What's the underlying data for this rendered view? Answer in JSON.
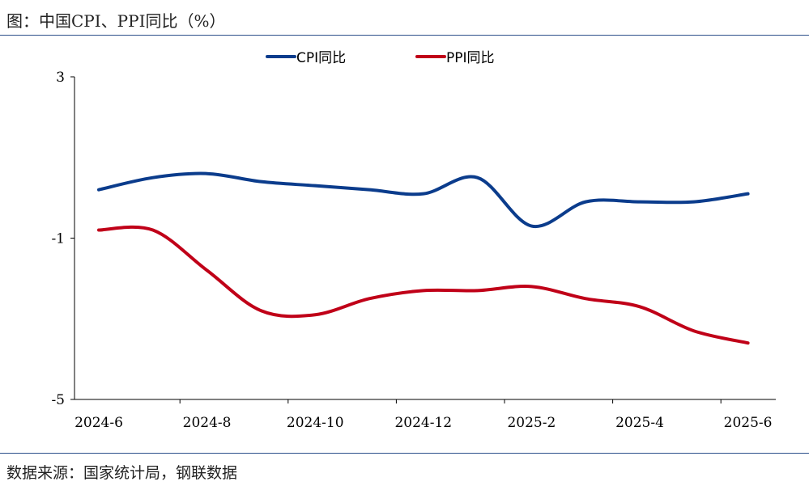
{
  "title": "图：中国CPI、PPI同比（%）",
  "source": "数据来源：国家统计局，钢联数据",
  "chart_data": {
    "type": "line",
    "x": [
      "2024-6",
      "2024-7",
      "2024-8",
      "2024-9",
      "2024-10",
      "2024-11",
      "2024-12",
      "2025-1",
      "2025-2",
      "2025-3",
      "2025-4",
      "2025-5",
      "2025-6"
    ],
    "xticklabels": [
      "2024-6",
      "2024-8",
      "2024-10",
      "2024-12",
      "2025-2",
      "2025-4",
      "2025-6"
    ],
    "ylim": [
      -5,
      3
    ],
    "yticks": [
      3,
      -1,
      -5
    ],
    "legend": "top",
    "grid": false,
    "series": [
      {
        "name": "CPI同比",
        "color": "#0b3c8c",
        "values": [
          0.2,
          0.5,
          0.6,
          0.4,
          0.3,
          0.2,
          0.1,
          0.5,
          -0.7,
          -0.1,
          -0.1,
          -0.1,
          0.1
        ]
      },
      {
        "name": "PPI同比",
        "color": "#c00018",
        "values": [
          -0.8,
          -0.8,
          -1.8,
          -2.8,
          -2.9,
          -2.5,
          -2.3,
          -2.3,
          -2.2,
          -2.5,
          -2.7,
          -3.3,
          -3.6
        ]
      }
    ]
  }
}
